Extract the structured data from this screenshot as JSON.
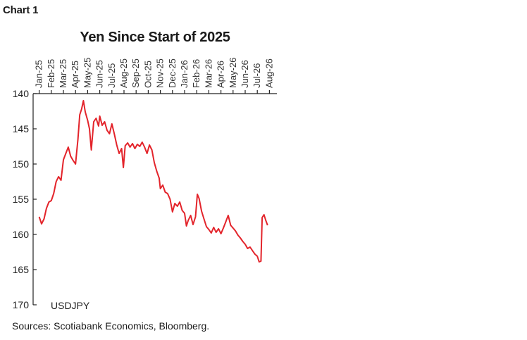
{
  "header": {
    "chart_number": "Chart 1"
  },
  "footer": {
    "source": "Sources: Scotiabank Economics, Bloomberg."
  },
  "chart_data": {
    "type": "line",
    "title": "Yen Since Start of 2025",
    "xlabel": "",
    "ylabel": "",
    "y_inverted": true,
    "ylim": [
      140,
      170
    ],
    "yticks": [
      140,
      145,
      150,
      155,
      160,
      165,
      170
    ],
    "x_tick_labels": [
      "Jan-25",
      "Feb-25",
      "Mar-25",
      "Apr-25",
      "May-25",
      "Jun-25",
      "Jul-25",
      "Aug-25",
      "Sep-25",
      "Oct-25",
      "Nov-25",
      "Dec-25",
      "Jan-26",
      "Feb-26",
      "Mar-26",
      "Apr-26",
      "May-26",
      "Jun-26",
      "Jul-26",
      "Aug-26"
    ],
    "colors": {
      "series": "#e3242b"
    },
    "series": [
      {
        "name": "USDJPY",
        "points": [
          [
            "Jan-25",
            157.5
          ],
          [
            0.2,
            158.5
          ],
          [
            0.4,
            157.8
          ],
          [
            0.6,
            156.3
          ],
          [
            0.8,
            155.4
          ],
          [
            1.0,
            155.2
          ],
          [
            1.2,
            154.2
          ],
          [
            1.4,
            152.5
          ],
          [
            1.6,
            151.8
          ],
          [
            1.8,
            152.3
          ],
          [
            2.0,
            149.4
          ],
          [
            2.2,
            148.5
          ],
          [
            2.4,
            147.6
          ],
          [
            2.6,
            148.9
          ],
          [
            2.8,
            149.5
          ],
          [
            3.0,
            150.0
          ],
          [
            3.2,
            146.5
          ],
          [
            3.35,
            143.0
          ],
          [
            3.5,
            142.2
          ],
          [
            3.65,
            141.0
          ],
          [
            3.8,
            142.6
          ],
          [
            4.0,
            143.8
          ],
          [
            4.15,
            145.0
          ],
          [
            4.3,
            148.0
          ],
          [
            4.5,
            144.0
          ],
          [
            4.7,
            143.5
          ],
          [
            4.9,
            144.6
          ],
          [
            5.0,
            143.2
          ],
          [
            5.2,
            144.5
          ],
          [
            5.4,
            144.0
          ],
          [
            5.6,
            145.2
          ],
          [
            5.8,
            145.7
          ],
          [
            6.0,
            144.3
          ],
          [
            6.2,
            145.7
          ],
          [
            6.4,
            147.3
          ],
          [
            6.6,
            148.5
          ],
          [
            6.8,
            147.8
          ],
          [
            6.95,
            150.5
          ],
          [
            7.1,
            147.4
          ],
          [
            7.3,
            147.0
          ],
          [
            7.5,
            147.6
          ],
          [
            7.7,
            147.1
          ],
          [
            7.9,
            147.8
          ],
          [
            8.1,
            147.2
          ],
          [
            8.3,
            147.5
          ],
          [
            8.5,
            146.9
          ],
          [
            8.7,
            147.6
          ],
          [
            8.9,
            148.5
          ],
          [
            9.1,
            147.3
          ],
          [
            9.3,
            148.0
          ],
          [
            9.5,
            149.8
          ],
          [
            9.7,
            151.0
          ],
          [
            9.9,
            152.0
          ],
          [
            10.0,
            153.5
          ],
          [
            10.2,
            153.0
          ],
          [
            10.4,
            154.0
          ],
          [
            10.6,
            154.2
          ],
          [
            10.8,
            155.0
          ],
          [
            11.0,
            156.8
          ],
          [
            11.2,
            155.6
          ],
          [
            11.4,
            156.0
          ],
          [
            11.6,
            155.4
          ],
          [
            11.8,
            156.6
          ],
          [
            12.0,
            157.0
          ],
          [
            12.15,
            158.8
          ],
          [
            12.3,
            158.0
          ],
          [
            12.5,
            157.3
          ],
          [
            12.7,
            158.6
          ],
          [
            12.9,
            157.5
          ],
          [
            13.05,
            154.3
          ],
          [
            13.2,
            154.9
          ],
          [
            13.4,
            156.7
          ],
          [
            13.6,
            157.8
          ],
          [
            13.8,
            158.9
          ],
          [
            14.0,
            159.3
          ],
          [
            14.2,
            159.8
          ],
          [
            14.4,
            159.0
          ],
          [
            14.6,
            159.7
          ],
          [
            14.8,
            159.2
          ],
          [
            15.0,
            159.9
          ],
          [
            15.2,
            159.1
          ],
          [
            15.4,
            158.2
          ],
          [
            15.6,
            157.3
          ],
          [
            15.8,
            158.7
          ],
          [
            16.0,
            159.1
          ],
          [
            16.2,
            159.5
          ],
          [
            16.4,
            160.1
          ],
          [
            16.6,
            160.5
          ],
          [
            16.8,
            161.0
          ],
          [
            17.0,
            161.4
          ],
          [
            17.2,
            162.0
          ],
          [
            17.4,
            161.8
          ],
          [
            17.6,
            162.3
          ],
          [
            17.8,
            162.8
          ],
          [
            18.0,
            163.1
          ],
          [
            18.15,
            163.9
          ],
          [
            18.3,
            163.8
          ],
          [
            18.4,
            157.6
          ],
          [
            18.55,
            157.2
          ],
          [
            18.7,
            158.0
          ],
          [
            18.85,
            158.7
          ]
        ]
      }
    ]
  }
}
